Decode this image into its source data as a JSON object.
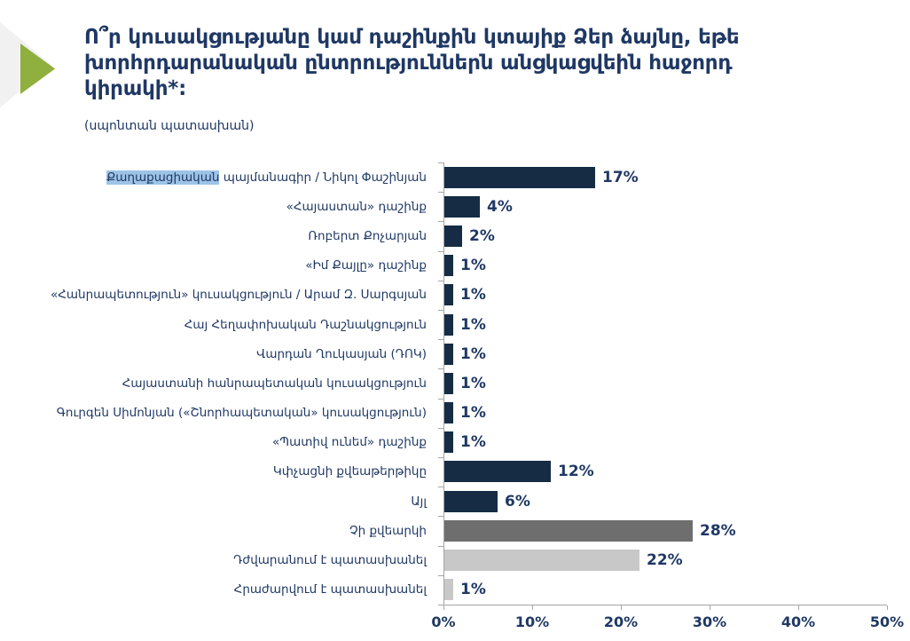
{
  "slide": {
    "title": "Ո՞ր կուսակցությանը կամ դաշինքին կտայիք Ձեր ձայնը, եթե խորհրդարանական ընտրություններն անցկացվեին հաջորդ կիրակի*:",
    "subtitle": "(սպոնտան պատասխան)"
  },
  "colors": {
    "navy": "#152c44",
    "dark_gray": "#6e6e6e",
    "light_gray": "#c8c8c8",
    "text_navy": "#1f3864",
    "label_highlight": "#9dc3e6",
    "accent_green": "#8faf3e",
    "deco_gray": "#f1f1f1",
    "axis_gray": "#a6a6a6"
  },
  "chart_data": {
    "type": "bar",
    "orientation": "horizontal",
    "title": "Ո՞ր կուսակցությանը կամ դաշինքին կտայիք Ձեր ձայնը, եթե խորհրդարանական ընտրություններն անցկացվեին հաջորդ կիրակի*:",
    "subtitle": "(սպոնտան պատասխան)",
    "categories": [
      "Քաղաքացիական պայմանագիր / Նիկոլ Փաշինյան",
      "«Հայաստան» դաշինք",
      "Ռոբերտ Քոչարյան",
      "«Իմ Քայլը» դաշինք",
      "«Հանրապետություն» կուսակցություն / Արամ Զ. Սարգսյան",
      "Հայ Հեղափոխական Դաշնակցություն",
      "Վարդան Ղուկասյան (ԴՈԿ)",
      "Հայաստանի հանրապետական կուսակցություն",
      "Գուրգեն Սիմոնյան («Շնորհապետական» կուսակցություն)",
      "«Պատիվ ունեմ» դաշինք",
      "Կփչացնի քվեաթերթիկը",
      "Այլ",
      "Չի քվեարկի",
      "Դժվարանում է պատասխանել",
      "Հրաժարվում է պատասխանել"
    ],
    "values": [
      17,
      4,
      2,
      1,
      1,
      1,
      1,
      1,
      1,
      1,
      12,
      6,
      28,
      22,
      1
    ],
    "value_labels": [
      "17%",
      "4%",
      "2%",
      "1%",
      "1%",
      "1%",
      "1%",
      "1%",
      "1%",
      "1%",
      "12%",
      "6%",
      "28%",
      "22%",
      "1%"
    ],
    "bar_colors": [
      "navy",
      "navy",
      "navy",
      "navy",
      "navy",
      "navy",
      "navy",
      "navy",
      "navy",
      "navy",
      "navy",
      "navy",
      "dark_gray",
      "light_gray",
      "light_gray"
    ],
    "label_highlight": {
      "index": 0,
      "text": "Քաղաքացիական"
    },
    "x_ticks": [
      "0%",
      "10%",
      "20%",
      "30%",
      "40%",
      "50%"
    ],
    "x_tick_values": [
      0,
      10,
      20,
      30,
      40,
      50
    ],
    "xlim": [
      0,
      50
    ],
    "xlabel": "",
    "ylabel": "",
    "grid": false,
    "legend": false
  }
}
